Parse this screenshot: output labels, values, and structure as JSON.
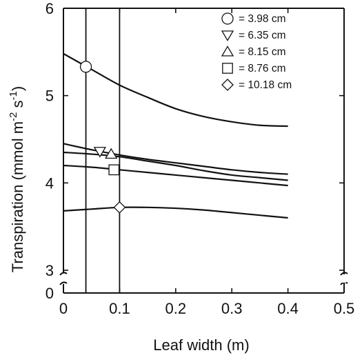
{
  "chart_data": {
    "type": "line",
    "xlabel": "Leaf width (m)",
    "ylabel_parts": {
      "prefix": "Transpiration (mmol m",
      "exp1": "-2",
      "middle": " s",
      "exp2": "-1",
      "suffix": ")"
    },
    "xlim": [
      0,
      0.5
    ],
    "ylim_upper": [
      3,
      6
    ],
    "y_axis_break": true,
    "x_ticks": [
      {
        "value": 0,
        "label": "0"
      },
      {
        "value": 0.1,
        "label": "0.1"
      },
      {
        "value": 0.2,
        "label": "0.2"
      },
      {
        "value": 0.3,
        "label": "0.3"
      },
      {
        "value": 0.4,
        "label": "0.4"
      },
      {
        "value": 0.5,
        "label": "0.5"
      }
    ],
    "y_ticks": [
      {
        "value": 3,
        "label": "3"
      },
      {
        "value": 4,
        "label": "4"
      },
      {
        "value": 5,
        "label": "5"
      },
      {
        "value": 6,
        "label": "6"
      }
    ],
    "y_zero_label": "0",
    "vertical_reference_lines": [
      0.04,
      0.1
    ],
    "legend_position": "top-right",
    "series": [
      {
        "name": "= 3.98 cm",
        "marker": "circle",
        "x": [
          0.0,
          0.05,
          0.1,
          0.15,
          0.2,
          0.25,
          0.3,
          0.35,
          0.4
        ],
        "y": [
          5.48,
          5.3,
          5.12,
          4.98,
          4.85,
          4.76,
          4.7,
          4.66,
          4.65
        ],
        "point": {
          "x": 0.04,
          "y": 5.33
        }
      },
      {
        "name": "= 6.35 cm",
        "marker": "triangle-down",
        "x": [
          0.0,
          0.05,
          0.1,
          0.15,
          0.2,
          0.25,
          0.3,
          0.35,
          0.4
        ],
        "y": [
          4.45,
          4.38,
          4.32,
          4.27,
          4.23,
          4.19,
          4.15,
          4.12,
          4.1
        ],
        "point": {
          "x": 0.065,
          "y": 4.36
        }
      },
      {
        "name": "= 8.15 cm",
        "marker": "triangle-up",
        "x": [
          0.0,
          0.05,
          0.1,
          0.15,
          0.2,
          0.25,
          0.3,
          0.35,
          0.4
        ],
        "y": [
          4.35,
          4.33,
          4.3,
          4.25,
          4.2,
          4.14,
          4.09,
          4.06,
          4.03
        ],
        "point": {
          "x": 0.085,
          "y": 4.33
        }
      },
      {
        "name": "= 8.76 cm",
        "marker": "square",
        "x": [
          0.0,
          0.05,
          0.1,
          0.15,
          0.2,
          0.25,
          0.3,
          0.35,
          0.4
        ],
        "y": [
          4.2,
          4.18,
          4.15,
          4.12,
          4.09,
          4.06,
          4.03,
          4.0,
          3.97
        ],
        "point": {
          "x": 0.09,
          "y": 4.15
        }
      },
      {
        "name": "= 10.18 cm",
        "marker": "diamond",
        "x": [
          0.0,
          0.05,
          0.1,
          0.15,
          0.2,
          0.25,
          0.3,
          0.35,
          0.4
        ],
        "y": [
          3.68,
          3.7,
          3.72,
          3.72,
          3.71,
          3.69,
          3.66,
          3.63,
          3.6
        ],
        "point": {
          "x": 0.1,
          "y": 3.72
        }
      }
    ]
  }
}
